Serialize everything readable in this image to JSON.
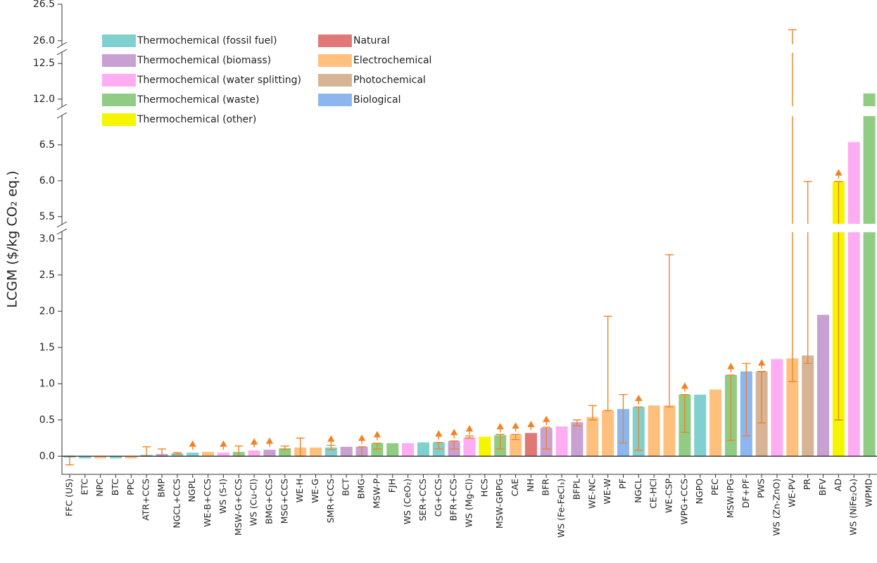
{
  "chart_data": {
    "type": "bar",
    "y_label": "LCGM ($/kg CO₂ eq.)",
    "legend": [
      {
        "name": "Thermochemical (fossil fuel)",
        "color": "#80d0d0"
      },
      {
        "name": "Thermochemical (biomass)",
        "color": "#c8a0d2"
      },
      {
        "name": "Thermochemical (water splitting)",
        "color": "#ffadf2"
      },
      {
        "name": "Thermochemical (waste)",
        "color": "#90cc84"
      },
      {
        "name": "Thermochemical (other)",
        "color": "#f5f500"
      },
      {
        "name": "Natural",
        "color": "#e07878"
      },
      {
        "name": "Electrochemical",
        "color": "#ffc07e"
      },
      {
        "name": "Photochemical",
        "color": "#d8b496"
      },
      {
        "name": "Biological",
        "color": "#8cb6f0"
      }
    ],
    "categories": [
      "FFC (US)",
      "ETC",
      "NPC",
      "BTC",
      "PPC",
      "ATR+CCS",
      "BMP",
      "NGCL+CCS",
      "NGPL",
      "WE-B+CCS",
      "WS (S-I)",
      "MSW-G+CCS",
      "WS (Cu-Cl)",
      "BMG+CCS",
      "MSG+CCS",
      "WE-H",
      "WE-G",
      "SMR+CCS",
      "BCT",
      "BMG",
      "MSW-P",
      "FJH",
      "WS (CeO₂)",
      "SER+CCS",
      "CG+CCS",
      "BFR+CCS",
      "WS (Mg-Cl)",
      "HCS",
      "MSW-GRPG",
      "CAE",
      "NH",
      "BFR",
      "WS (Fe-FeCl₃)",
      "BFPL",
      "WE-NC",
      "WE-W",
      "PF",
      "NGCL",
      "CE-HCl",
      "WE-CSP",
      "WPG+CCS",
      "NGPO",
      "PEC",
      "MSW-IPG",
      "DF+PF",
      "PWS",
      "WS (Zn-ZnO)",
      "WE-PV",
      "PR",
      "BFV",
      "AD",
      "WS (NiFe₂O₄)",
      "WPMD"
    ],
    "values": [
      -0.02,
      -0.03,
      -0.03,
      -0.03,
      -0.03,
      0.02,
      0.03,
      0.04,
      0.05,
      0.06,
      0.05,
      0.06,
      0.08,
      0.09,
      0.11,
      0.12,
      0.12,
      0.12,
      0.13,
      0.13,
      0.18,
      0.18,
      0.18,
      0.19,
      0.19,
      0.21,
      0.26,
      0.27,
      0.29,
      0.3,
      0.32,
      0.39,
      0.41,
      0.47,
      0.54,
      0.63,
      0.65,
      0.68,
      0.7,
      0.7,
      0.85,
      0.85,
      0.92,
      1.12,
      1.17,
      1.17,
      1.34,
      1.35,
      1.39,
      1.95,
      5.99,
      6.54,
      12.08
    ],
    "groups": [
      0,
      0,
      6,
      0,
      6,
      0,
      1,
      0,
      0,
      6,
      2,
      3,
      2,
      1,
      3,
      6,
      6,
      0,
      1,
      1,
      3,
      3,
      2,
      0,
      0,
      1,
      2,
      4,
      3,
      6,
      5,
      1,
      2,
      1,
      6,
      6,
      8,
      0,
      6,
      6,
      3,
      0,
      6,
      3,
      8,
      7,
      2,
      6,
      7,
      1,
      4,
      2,
      3
    ],
    "error_low": [
      -0.12,
      null,
      null,
      null,
      null,
      0.0,
      0.0,
      0.03,
      null,
      null,
      null,
      0.0,
      null,
      null,
      0.09,
      0.0,
      null,
      0.09,
      null,
      0.0,
      0.1,
      null,
      null,
      null,
      0.1,
      0.1,
      0.25,
      null,
      0.1,
      0.23,
      null,
      0.1,
      null,
      0.42,
      0.5,
      0.63,
      0.18,
      0.08,
      null,
      0.68,
      0.33,
      null,
      null,
      0.22,
      0.28,
      0.46,
      null,
      1.03,
      1.28,
      null,
      0.5,
      null,
      null
    ],
    "error_high": [
      0.0,
      null,
      null,
      null,
      null,
      0.13,
      0.1,
      0.05,
      null,
      null,
      null,
      0.14,
      null,
      null,
      0.14,
      0.25,
      null,
      0.15,
      null,
      0.13,
      0.18,
      null,
      null,
      null,
      0.19,
      0.21,
      0.28,
      null,
      0.3,
      0.3,
      null,
      0.4,
      null,
      0.5,
      0.7,
      1.93,
      0.85,
      0.68,
      null,
      2.78,
      0.85,
      null,
      null,
      1.12,
      1.28,
      1.17,
      null,
      26.15,
      5.99,
      null,
      5.99,
      null,
      null
    ],
    "lower_bound": [
      false,
      false,
      false,
      false,
      false,
      false,
      false,
      false,
      true,
      false,
      true,
      false,
      true,
      true,
      false,
      false,
      false,
      true,
      false,
      true,
      true,
      false,
      false,
      false,
      true,
      true,
      true,
      false,
      true,
      true,
      true,
      true,
      false,
      false,
      false,
      false,
      false,
      true,
      false,
      false,
      true,
      false,
      false,
      true,
      false,
      true,
      false,
      false,
      false,
      false,
      true,
      false,
      false
    ],
    "y_segments": [
      {
        "ylim": [
          -0.25,
          3.09
        ],
        "yticks": [
          {
            "value": 0,
            "label": "0.0"
          },
          0.5,
          {
            "value": 1,
            "label": "1.0"
          },
          1.5,
          {
            "value": 2,
            "label": "2.0"
          },
          2.5,
          {
            "value": 3,
            "label": "3.0"
          }
        ]
      },
      {
        "ylim": [
          5.4,
          6.9
        ],
        "yticks": [
          5.5,
          {
            "value": 6,
            "label": "6.0"
          },
          6.5
        ]
      },
      {
        "ylim": [
          11.9,
          12.65
        ],
        "yticks": [
          {
            "value": 12,
            "label": "12.0"
          },
          12.5
        ]
      },
      {
        "ylim": [
          25.95,
          26.5
        ],
        "yticks": [
          {
            "value": 26,
            "label": "26.0"
          },
          26.5
        ]
      }
    ],
    "error_color": "#f08424"
  }
}
